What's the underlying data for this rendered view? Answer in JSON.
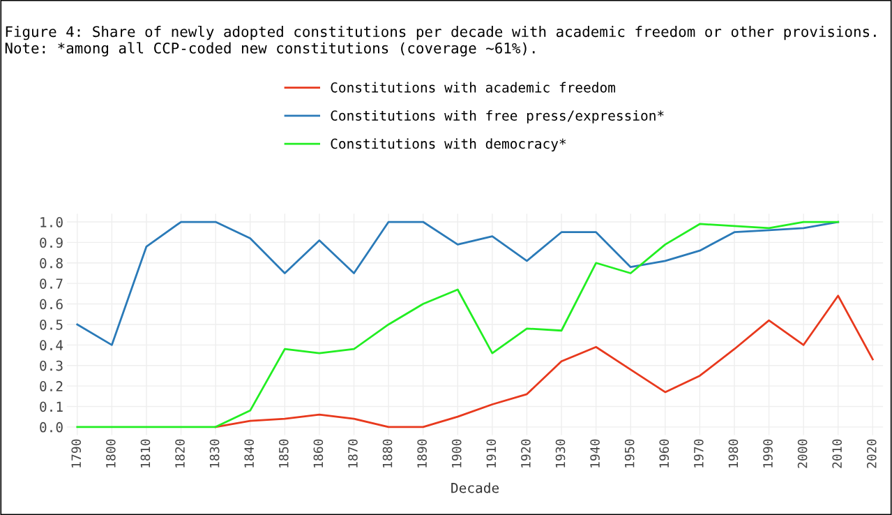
{
  "chart_data": {
    "type": "line",
    "title": "Figure 4: Share of newly adopted constitutions per decade with academic freedom or other provisions. Note: *among all CCP-coded new constitutions (coverage ~61%).",
    "xlabel": "Decade",
    "categories": [
      "1790",
      "1800",
      "1810",
      "1820",
      "1830",
      "1840",
      "1850",
      "1860",
      "1870",
      "1880",
      "1890",
      "1900",
      "1910",
      "1920",
      "1930",
      "1940",
      "1950",
      "1960",
      "1970",
      "1980",
      "1990",
      "2000",
      "2010",
      "2020"
    ],
    "series": [
      {
        "name": "Constitutions with academic freedom",
        "color": "#e8391d",
        "values": [
          null,
          null,
          null,
          null,
          0,
          0.03,
          0.04,
          0.06,
          0.04,
          0,
          0,
          0.05,
          0.11,
          0.16,
          0.32,
          0.39,
          0.28,
          0.17,
          0.25,
          0.38,
          0.52,
          0.4,
          0.64,
          0.33
        ]
      },
      {
        "name": "Constitutions with free press/expression*",
        "color": "#2a7ab8",
        "values": [
          0.5,
          0.4,
          0.88,
          1.0,
          1.0,
          0.92,
          0.75,
          0.91,
          0.75,
          1.0,
          1.0,
          0.89,
          0.93,
          0.81,
          0.95,
          0.95,
          0.78,
          0.81,
          0.86,
          0.95,
          0.96,
          0.97,
          1.0,
          null
        ]
      },
      {
        "name": "Constitutions with democracy*",
        "color": "#22ee22",
        "values": [
          0,
          0,
          0,
          0,
          0,
          0.08,
          0.38,
          0.36,
          0.38,
          0.5,
          0.6,
          0.67,
          0.36,
          0.48,
          0.47,
          0.8,
          0.75,
          0.89,
          0.99,
          0.98,
          0.97,
          1.0,
          1.0,
          null
        ]
      }
    ],
    "ylim": [
      -0.04,
      1.04
    ],
    "yticks": [
      {
        "value": 0,
        "label": "0.0"
      },
      0.1,
      0.2,
      0.3,
      0.4,
      0.5,
      0.6,
      0.7,
      0.8,
      0.9,
      {
        "value": 1,
        "label": "1.0"
      }
    ],
    "grid": true,
    "legend": "top",
    "marker": "none",
    "line_style": "solid"
  }
}
